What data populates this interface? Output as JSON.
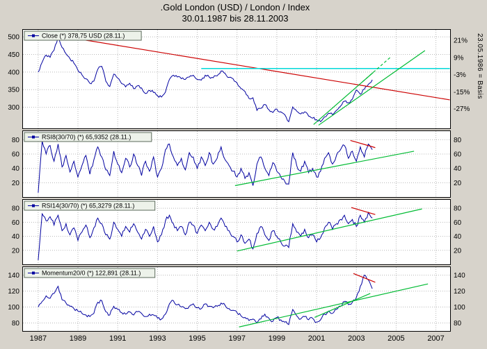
{
  "window": {
    "title_line1": ".Gold London (USD) / London / Index",
    "title_line2": "30.01.1987 bis 28.11.2003"
  },
  "right_axis_rotated_label": "23.05.1986 = Basis",
  "colors": {
    "series": "#0000a0",
    "red": "#cc0000",
    "green": "#00bb33",
    "cyan": "#00d8d8",
    "grid": "#b8b8b8",
    "panel_bg": "#ffffff",
    "page_bg": "#d7d3cb",
    "legend_bg": "#edf2ea",
    "legend_border": "#5a6a5a"
  },
  "x_axis": {
    "min": 1986.2,
    "max": 2007.75,
    "ticks": [
      1987,
      1989,
      1991,
      1993,
      1995,
      1997,
      1999,
      2001,
      2003,
      2005,
      2007
    ]
  },
  "chart_data": [
    {
      "type": "line",
      "name": "price",
      "legend": "Close (*) 378,75 USD (28.11.)",
      "ylim": [
        240,
        520
      ],
      "yticks": [
        300,
        350,
        400,
        450,
        500
      ],
      "right_labels": [
        {
          "label": "21%",
          "value": 490
        },
        {
          "label": "9%",
          "value": 441
        },
        {
          "label": "-3%",
          "value": 393
        },
        {
          "label": "-15%",
          "value": 344
        },
        {
          "label": "-27%",
          "value": 296
        }
      ],
      "noise": 4,
      "series": {
        "x_start": 1987.0,
        "x_step": 0.2,
        "values": [
          400,
          428,
          448,
          442,
          462,
          500,
          470,
          452,
          438,
          425,
          405,
          392,
          381,
          368,
          374,
          408,
          416,
          374,
          359,
          394,
          383,
          367,
          358,
          368,
          353,
          361,
          355,
          339,
          348,
          342,
          333,
          329,
          343,
          379,
          391,
          386,
          381,
          379,
          386,
          391,
          379,
          377,
          391,
          386,
          384,
          389,
          403,
          396,
          385,
          381,
          369,
          353,
          345,
          325,
          327,
          291,
          297,
          308,
          293,
          285,
          295,
          287,
          279,
          259,
          301,
          289,
          281,
          287,
          275,
          269,
          265,
          259,
          273,
          283,
          279,
          291,
          303,
          317,
          313,
          323,
          349,
          337,
          351,
          365,
          378
        ]
      },
      "overlays": [
        {
          "color": "red",
          "x1": 1988.05,
          "y1": 503,
          "x2": 2007.7,
          "y2": 321,
          "dash": false
        },
        {
          "color": "cyan",
          "x1": 1995.2,
          "y1": 410,
          "x2": 2007.7,
          "y2": 410,
          "dash": false
        },
        {
          "color": "green",
          "x1": 2000.85,
          "y1": 251,
          "x2": 2003.85,
          "y2": 399,
          "dash": false
        },
        {
          "color": "green",
          "x1": 2003.3,
          "y1": 372,
          "x2": 2004.75,
          "y2": 444,
          "dash": true
        },
        {
          "color": "green",
          "x1": 2001.1,
          "y1": 249,
          "x2": 2006.45,
          "y2": 461,
          "dash": false
        }
      ]
    },
    {
      "type": "line",
      "name": "rsi8",
      "legend": "RSI8(30/70) (*) 65,9352 (28.11.)",
      "ylim": [
        0,
        92
      ],
      "yticks": [
        20,
        40,
        60,
        80
      ],
      "noise": 3,
      "series": {
        "x_start": 1987.0,
        "x_step": 0.2,
        "values": [
          6,
          78,
          60,
          72,
          50,
          74,
          42,
          58,
          35,
          50,
          28,
          44,
          58,
          32,
          52,
          70,
          56,
          38,
          30,
          64,
          46,
          34,
          54,
          42,
          60,
          44,
          30,
          50,
          36,
          56,
          28,
          40,
          66,
          74,
          56,
          44,
          54,
          38,
          62,
          56,
          40,
          56,
          44,
          62,
          46,
          54,
          70,
          52,
          44,
          36,
          28,
          40,
          26,
          34,
          16,
          46,
          56,
          40,
          30,
          48,
          36,
          28,
          22,
          18,
          62,
          44,
          36,
          50,
          34,
          40,
          28,
          36,
          54,
          62,
          46,
          58,
          66,
          72,
          54,
          64,
          50,
          70,
          56,
          74,
          66
        ]
      },
      "overlays": [
        {
          "color": "green",
          "x1": 1996.9,
          "y1": 16,
          "x2": 2005.9,
          "y2": 64,
          "dash": false
        },
        {
          "color": "red",
          "x1": 2002.7,
          "y1": 79,
          "x2": 2003.95,
          "y2": 69,
          "dash": false
        }
      ]
    },
    {
      "type": "line",
      "name": "rsi14",
      "legend": "RSI14(30/70) (*) 65,3279 (28.11.)",
      "ylim": [
        0,
        92
      ],
      "yticks": [
        20,
        40,
        60,
        80
      ],
      "noise": 3,
      "series": {
        "x_start": 1987.0,
        "x_step": 0.2,
        "values": [
          6,
          72,
          62,
          68,
          56,
          70,
          48,
          58,
          42,
          52,
          34,
          46,
          56,
          38,
          52,
          66,
          58,
          42,
          36,
          60,
          50,
          40,
          54,
          46,
          58,
          46,
          36,
          50,
          40,
          54,
          32,
          42,
          62,
          70,
          58,
          48,
          54,
          42,
          60,
          56,
          44,
          56,
          48,
          60,
          50,
          54,
          66,
          54,
          48,
          40,
          32,
          42,
          30,
          36,
          22,
          44,
          54,
          42,
          34,
          48,
          40,
          32,
          26,
          24,
          58,
          46,
          40,
          50,
          38,
          42,
          32,
          38,
          52,
          60,
          50,
          58,
          64,
          70,
          58,
          64,
          54,
          70,
          60,
          74,
          66
        ]
      },
      "overlays": [
        {
          "color": "green",
          "x1": 1997.0,
          "y1": 19,
          "x2": 2006.3,
          "y2": 79,
          "dash": false
        },
        {
          "color": "red",
          "x1": 2002.75,
          "y1": 81,
          "x2": 2003.95,
          "y2": 71,
          "dash": false
        }
      ]
    },
    {
      "type": "line",
      "name": "momentum",
      "legend": "Momentum20/0 (*) 122,891 (28.11.)",
      "ylim": [
        70,
        150
      ],
      "yticks": [
        80,
        100,
        120,
        140
      ],
      "noise": 2,
      "series": {
        "x_start": 1987.0,
        "x_step": 0.2,
        "values": [
          100,
          107,
          114,
          111,
          117,
          126,
          109,
          105,
          101,
          98,
          95,
          92,
          90,
          88,
          92,
          106,
          108,
          94,
          90,
          101,
          97,
          93,
          91,
          94,
          90,
          94,
          92,
          88,
          91,
          90,
          86,
          85,
          91,
          104,
          108,
          103,
          100,
          98,
          101,
          104,
          99,
          98,
          104,
          101,
          99,
          101,
          105,
          102,
          98,
          96,
          93,
          89,
          87,
          83,
          85,
          80,
          85,
          91,
          86,
          82,
          87,
          84,
          81,
          78,
          97,
          89,
          85,
          88,
          84,
          86,
          81,
          84,
          91,
          95,
          92,
          97,
          101,
          107,
          103,
          106,
          112,
          126,
          140,
          134,
          123
        ]
      },
      "overlays": [
        {
          "color": "green",
          "x1": 1997.1,
          "y1": 75,
          "x2": 2006.6,
          "y2": 129,
          "dash": false
        },
        {
          "color": "green",
          "x1": 2000.9,
          "y1": 87,
          "x2": 2003.7,
          "y2": 117,
          "dash": false
        },
        {
          "color": "red",
          "x1": 2002.85,
          "y1": 142,
          "x2": 2003.95,
          "y2": 131,
          "dash": false
        }
      ]
    }
  ]
}
